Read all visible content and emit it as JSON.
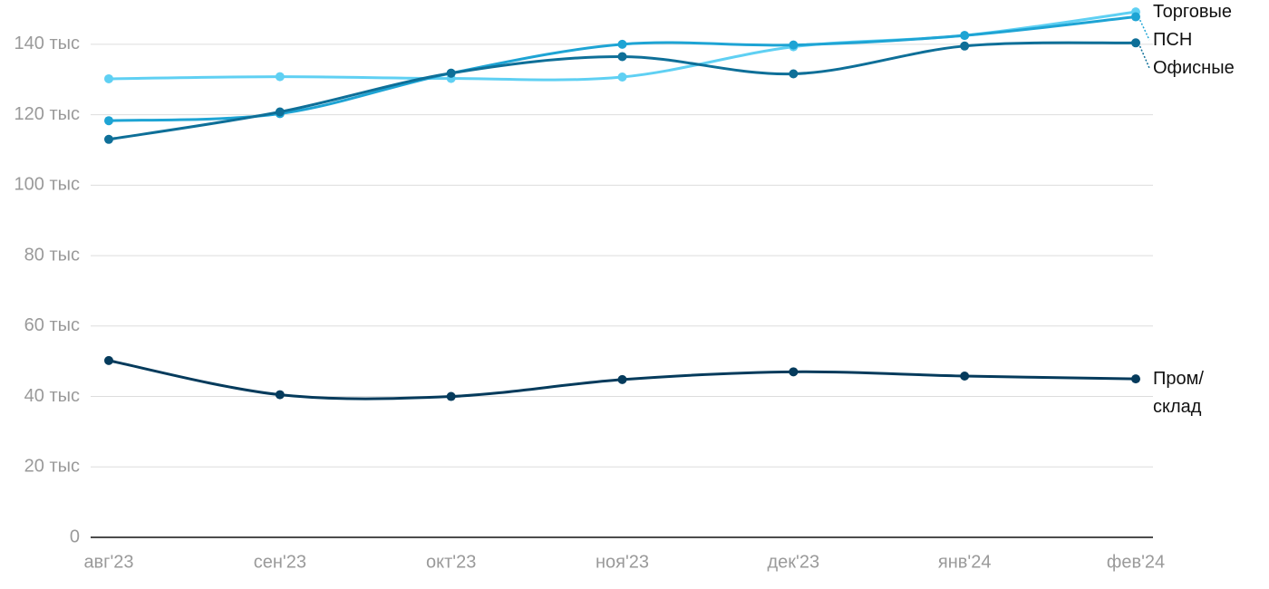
{
  "chart_data": {
    "type": "line",
    "categories": [
      "авг'23",
      "сен'23",
      "окт'23",
      "ноя'23",
      "дек'23",
      "янв'24",
      "фев'24"
    ],
    "series": [
      {
        "name": "Торговые",
        "color": "#5fd0f3",
        "values": [
          130200,
          130800,
          130300,
          130700,
          139300,
          142500,
          149200
        ]
      },
      {
        "name": "ПСН",
        "color": "#1ea4d4",
        "values": [
          118300,
          120300,
          131800,
          140000,
          139800,
          142500,
          147800
        ]
      },
      {
        "name": "Офисные",
        "color": "#0e6f98",
        "values": [
          113000,
          120800,
          131800,
          136500,
          131600,
          139500,
          140400
        ]
      },
      {
        "name": "Пром/ склад",
        "color": "#053b5c",
        "values": [
          50200,
          40500,
          40000,
          44800,
          47000,
          45800,
          45000
        ]
      }
    ],
    "ylim": [
      0,
      150000
    ],
    "yticks": [
      0,
      {
        "value": 20000,
        "label": "20 тыс"
      },
      {
        "value": 40000,
        "label": "40 тыс"
      },
      {
        "value": 60000,
        "label": "60 тыс"
      },
      {
        "value": 80000,
        "label": "80 тыс"
      },
      {
        "value": 100000,
        "label": "100 тыс"
      },
      {
        "value": 120000,
        "label": "120 тыс"
      },
      {
        "value": 140000,
        "label": "140 тыс"
      }
    ],
    "grid": true
  }
}
